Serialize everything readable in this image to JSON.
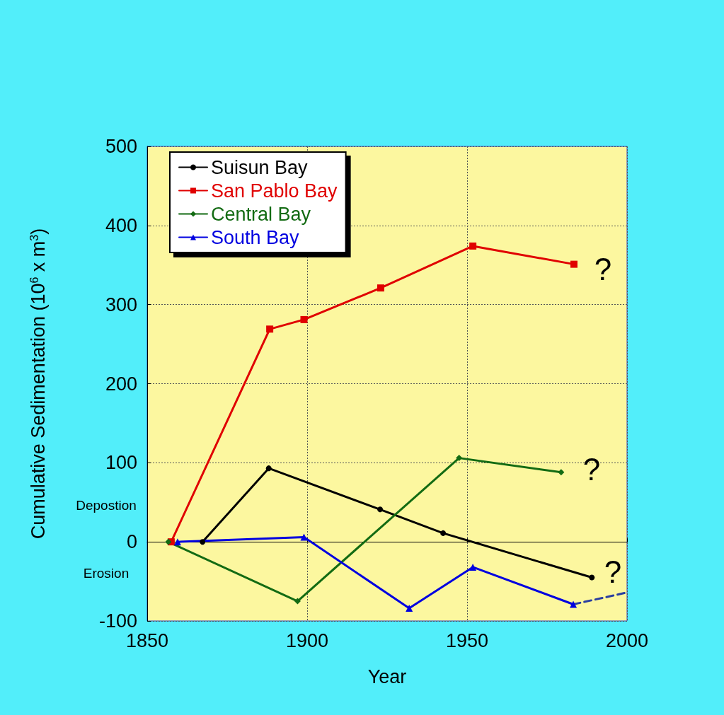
{
  "chart_data": {
    "type": "line",
    "xlabel": "Year",
    "ylabel": "Cumulative Sedimentation (10$^{6}$ x m$^{3}$)",
    "xlim": [
      1850,
      2000
    ],
    "xticks": [
      1850,
      1900,
      1950,
      2000
    ],
    "ylim": [
      -100,
      500
    ],
    "yticks": [
      -100,
      0,
      100,
      200,
      300,
      400,
      500
    ],
    "grid": true,
    "legend": "top left",
    "line_style": "solid",
    "series": [
      {
        "name": "Suisun Bay",
        "color": "#000000",
        "marker": "circle",
        "x": [
          1867.3,
          1888,
          1922.8,
          1942.5,
          1989
        ],
        "values": [
          0,
          93,
          41,
          11,
          -45
        ]
      },
      {
        "name": "San Pablo Bay",
        "color": "#e00000",
        "marker": "square",
        "x": [
          1857.5,
          1888.3,
          1899,
          1923,
          1951.8,
          1983.4
        ],
        "values": [
          0,
          269,
          281,
          321,
          374,
          351
        ]
      },
      {
        "name": "Central Bay",
        "color": "#136b13",
        "marker": "diamond",
        "x": [
          1856.6,
          1897,
          1947.5,
          1979.4
        ],
        "values": [
          0,
          -75,
          106,
          88
        ]
      },
      {
        "name": "South Bay",
        "color": "#0000e0",
        "marker": "triangle",
        "x": [
          1859.5,
          1899,
          1931.9,
          1951.8,
          1983.2
        ],
        "values": [
          0,
          6,
          -84,
          -32,
          -79
        ]
      },
      {
        "color": "#2a3ea0",
        "marker": "none",
        "line_style": "dashed",
        "x": [
          1983.2,
          2000
        ],
        "values": [
          -79,
          -64
        ]
      }
    ],
    "annotations": [
      "?",
      "?",
      "?",
      "Depostion",
      "Erosion"
    ]
  }
}
